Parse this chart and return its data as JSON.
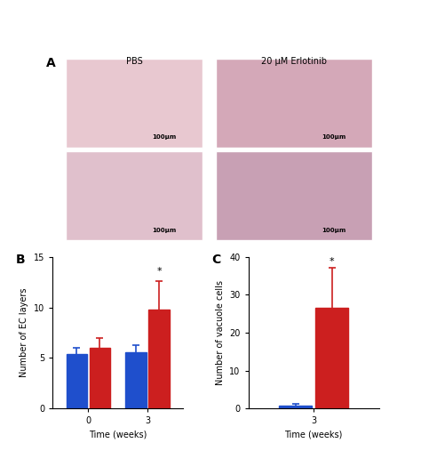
{
  "panel_B": {
    "title": "B",
    "xlabel": "Time (weeks)",
    "ylabel": "Number of EC layers",
    "ylim": [
      0,
      15
    ],
    "yticks": [
      0,
      5,
      10,
      15
    ],
    "time_points": [
      "0",
      "3"
    ],
    "pbs_values": [
      5.4,
      5.6
    ],
    "erlotinib_values": [
      6.0,
      9.8
    ],
    "pbs_errors": [
      0.6,
      0.7
    ],
    "erlotinib_errors": [
      1.0,
      2.8
    ],
    "pbs_color": "#1f4fcc",
    "erlotinib_color": "#cc1f1f",
    "bar_width": 0.35,
    "significance_label": "*"
  },
  "panel_C": {
    "title": "C",
    "xlabel": "Time (weeks)",
    "ylabel": "Number of vacuole cells",
    "ylim": [
      0,
      40
    ],
    "yticks": [
      0,
      10,
      20,
      30,
      40
    ],
    "time_points": [
      "3"
    ],
    "pbs_values": [
      0.8
    ],
    "erlotinib_values": [
      26.5
    ],
    "pbs_errors": [
      0.4
    ],
    "erlotinib_errors": [
      10.5
    ],
    "pbs_color": "#1f4fcc",
    "erlotinib_color": "#cc1f1f",
    "bar_width": 0.35,
    "significance_label": "*"
  },
  "legend": {
    "pbs_label": "PBS",
    "erlotinib_label": "20 μM Erlotinib",
    "pbs_color": "#1f4fcc",
    "erlotinib_color": "#cc1f1f"
  },
  "panel_A": {
    "title": "A",
    "col_labels": [
      "PBS",
      "20 μM Erlotinib"
    ],
    "bg_color": "#f0e0e8"
  }
}
